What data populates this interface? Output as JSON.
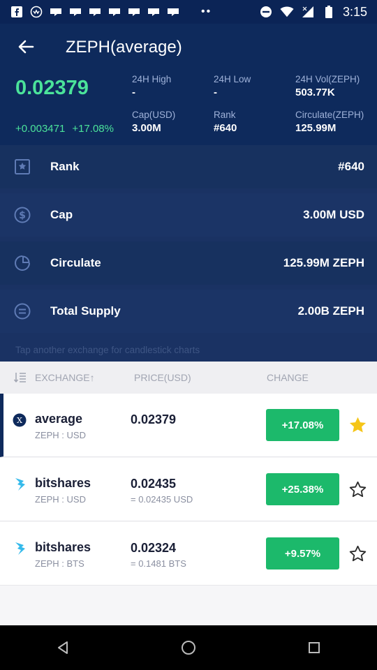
{
  "status_bar": {
    "time": "3:15",
    "dots": "••"
  },
  "header": {
    "title": "ZEPH(average)",
    "price": "0.02379",
    "change_abs": "+0.003471",
    "change_pct": "+17.08%",
    "stats": [
      {
        "label": "24H High",
        "value": "-"
      },
      {
        "label": "24H Low",
        "value": "-"
      },
      {
        "label": "24H Vol(ZEPH)",
        "value": "503.77K"
      },
      {
        "label": "Cap(USD)",
        "value": "3.00M"
      },
      {
        "label": "Rank",
        "value": "#640"
      },
      {
        "label": "Circulate(ZEPH)",
        "value": "125.99M"
      }
    ]
  },
  "info": {
    "rows": [
      {
        "icon": "bookmark-star-icon",
        "label": "Rank",
        "value": "#640"
      },
      {
        "icon": "dollar-circle-icon",
        "label": "Cap",
        "value": "3.00M USD"
      },
      {
        "icon": "pie-chart-icon",
        "label": "Circulate",
        "value": "125.99M ZEPH"
      },
      {
        "icon": "equals-circle-icon",
        "label": "Total Supply",
        "value": "2.00B ZEPH"
      }
    ],
    "hint": "Tap another exchange for candlestick charts"
  },
  "table": {
    "headers": {
      "exchange": "EXCHANGE↑",
      "price": "PRICE(USD)",
      "change": "CHANGE"
    },
    "rows": [
      {
        "exchange": "average",
        "pair": "ZEPH : USD",
        "price": "0.02379",
        "converted": "",
        "change": "+17.08%",
        "starred": true
      },
      {
        "exchange": "bitshares",
        "pair": "ZEPH : USD",
        "price": "0.02435",
        "converted": "= 0.02435 USD",
        "change": "+25.38%",
        "starred": false
      },
      {
        "exchange": "bitshares",
        "pair": "ZEPH : BTS",
        "price": "0.02324",
        "converted": "= 0.1481 BTS",
        "change": "+9.57%",
        "starred": false
      }
    ]
  },
  "colors": {
    "header_bg": "#0e2a5c",
    "positive": "#4be39a",
    "change_badge": "#1cb96b",
    "star_active": "#f5c518"
  }
}
